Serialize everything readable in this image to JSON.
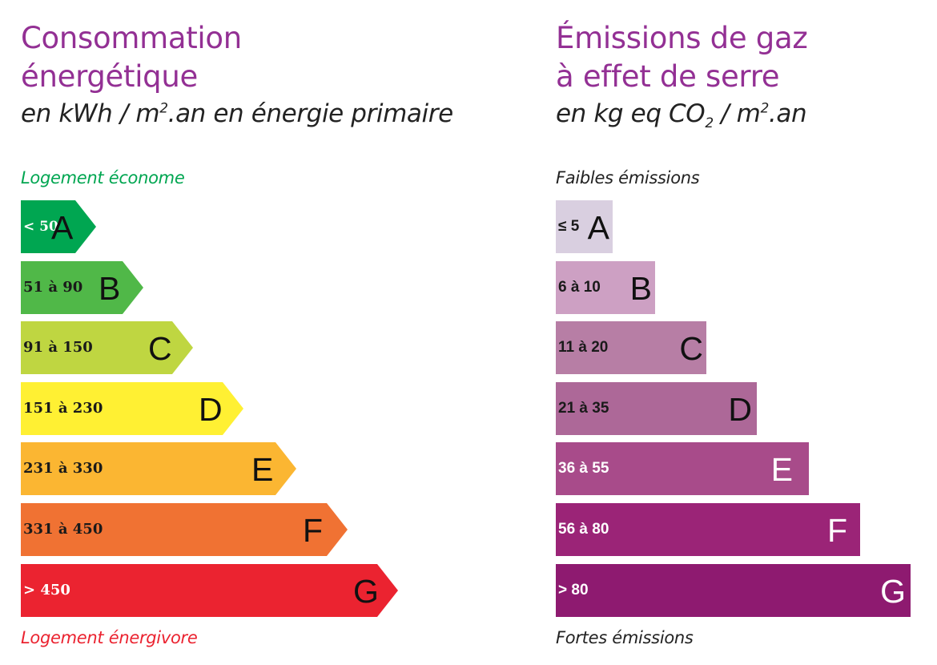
{
  "chart_data": [
    {
      "type": "bar",
      "title": "Consommation énergétique",
      "subtitle": "en kWh/m².an en énergie primaire",
      "unit": "kWh/m².an",
      "orientation": "horizontal",
      "categories": [
        "A",
        "B",
        "C",
        "D",
        "E",
        "F",
        "G"
      ],
      "ranges": [
        "< 50",
        "51 à 90",
        "91 à 150",
        "151 à 230",
        "231 à 330",
        "331 à 450",
        "> 450"
      ],
      "bounds": [
        [
          0,
          50
        ],
        [
          51,
          90
        ],
        [
          91,
          150
        ],
        [
          151,
          230
        ],
        [
          231,
          330
        ],
        [
          331,
          450
        ],
        [
          451,
          null
        ]
      ],
      "colors": [
        "#00a651",
        "#50b848",
        "#bfd641",
        "#fff033",
        "#fbb632",
        "#f07233",
        "#eb2330"
      ],
      "top_label": "Logement économe",
      "bottom_label": "Logement énergivore",
      "shape": "arrow"
    },
    {
      "type": "bar",
      "title": "Émissions de gaz à effet de serre",
      "subtitle": "en kg eq CO₂/m².an",
      "unit": "kg eq CO₂/m².an",
      "orientation": "horizontal",
      "categories": [
        "A",
        "B",
        "C",
        "D",
        "E",
        "F",
        "G"
      ],
      "ranges": [
        "≤ 5",
        "6 à 10",
        "11 à 20",
        "21 à 35",
        "36 à 55",
        "56 à 80",
        "> 80"
      ],
      "bounds": [
        [
          0,
          5
        ],
        [
          6,
          10
        ],
        [
          11,
          20
        ],
        [
          21,
          35
        ],
        [
          36,
          55
        ],
        [
          56,
          80
        ],
        [
          81,
          null
        ]
      ],
      "colors": [
        "#d9cfe0",
        "#cda0c3",
        "#b77ea5",
        "#ad6898",
        "#a84b8a",
        "#9b2477",
        "#8e1a70"
      ],
      "top_label": "Faibles émissions",
      "bottom_label": "Fortes émissions",
      "shape": "rectangle"
    }
  ],
  "energy": {
    "title_line1": "Consommation",
    "title_line2": "énergétique",
    "subtitle_a": "en kWh / m",
    "subtitle_sup": "2",
    "subtitle_b": ".an en énergie primaire",
    "top_label": "Logement économe",
    "bottom_label": "Logement énergivore",
    "top_label_color": "#00a651",
    "bottom_label_color": "#eb2330",
    "classes": [
      {
        "letter": "A",
        "range": "< 50",
        "color": "#00a651",
        "text_color": "#ffffff",
        "letter_color": "#111111"
      },
      {
        "letter": "B",
        "range": "51 à 90",
        "color": "#50b848",
        "text_color": "#1a1a1a",
        "letter_color": "#111111"
      },
      {
        "letter": "C",
        "range": "91 à 150",
        "color": "#bfd641",
        "text_color": "#1a1a1a",
        "letter_color": "#111111"
      },
      {
        "letter": "D",
        "range": "151 à 230",
        "color": "#fff033",
        "text_color": "#1a1a1a",
        "letter_color": "#111111"
      },
      {
        "letter": "E",
        "range": "231 à 330",
        "color": "#fbb632",
        "text_color": "#1a1a1a",
        "letter_color": "#111111"
      },
      {
        "letter": "F",
        "range": "331 à 450",
        "color": "#f07233",
        "text_color": "#1a1a1a",
        "letter_color": "#111111"
      },
      {
        "letter": "G",
        "range": "> 450",
        "color": "#eb2330",
        "text_color": "#ffffff",
        "letter_color": "#111111"
      }
    ]
  },
  "ghg": {
    "title_line1": "Émissions de gaz",
    "title_line2": "à effet de serre",
    "subtitle_a": "en kg eq CO",
    "subtitle_sub": "2",
    "subtitle_b": " / m",
    "subtitle_sup": "2",
    "subtitle_c": ".an",
    "top_label": "Faibles émissions",
    "bottom_label": "Fortes émissions",
    "classes": [
      {
        "letter": "A",
        "range": "≤ 5",
        "color": "#d9cfe0",
        "text_color": "#1a1a1a",
        "letter_color": "#111111"
      },
      {
        "letter": "B",
        "range": "6 à 10",
        "color": "#cda0c3",
        "text_color": "#1a1a1a",
        "letter_color": "#111111"
      },
      {
        "letter": "C",
        "range": "11 à 20",
        "color": "#b77ea5",
        "text_color": "#1a1a1a",
        "letter_color": "#111111"
      },
      {
        "letter": "D",
        "range": "21 à 35",
        "color": "#ad6898",
        "text_color": "#1a1a1a",
        "letter_color": "#111111"
      },
      {
        "letter": "E",
        "range": "36 à 55",
        "color": "#a84b8a",
        "text_color": "#ffffff",
        "letter_color": "#ffffff"
      },
      {
        "letter": "F",
        "range": "56 à 80",
        "color": "#9b2477",
        "text_color": "#ffffff",
        "letter_color": "#ffffff"
      },
      {
        "letter": "G",
        "range": "> 80",
        "color": "#8e1a70",
        "text_color": "#ffffff",
        "letter_color": "#ffffff"
      }
    ]
  }
}
